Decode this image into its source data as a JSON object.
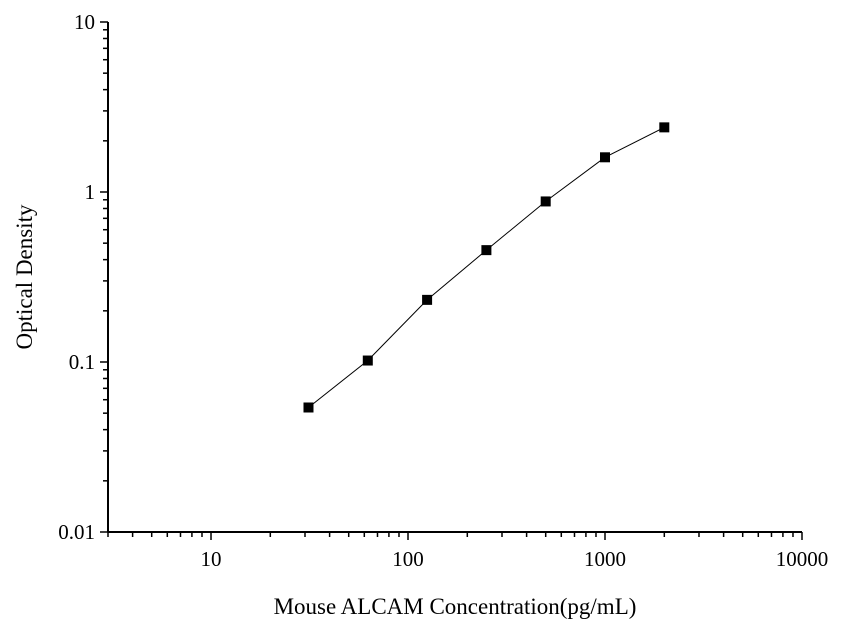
{
  "chart_data": {
    "type": "line",
    "xlabel": "Mouse ALCAM Concentration(pg/mL)",
    "ylabel": "Optical Density",
    "xscale": "log",
    "yscale": "log",
    "xlim": [
      3,
      10000
    ],
    "ylim": [
      0.01,
      10
    ],
    "x_ticks": [
      10,
      100,
      1000,
      10000
    ],
    "x_tick_labels": [
      "10",
      "100",
      "1000",
      "10000"
    ],
    "y_ticks": [
      0.01,
      0.1,
      1,
      10
    ],
    "y_tick_labels": [
      "0.01",
      "0.1",
      "1",
      "10"
    ],
    "grid": false,
    "marker": "square",
    "color": "#000000",
    "series": [
      {
        "x": [
          31.25,
          62.5,
          125,
          250,
          500,
          1000,
          2000
        ],
        "y": [
          0.054,
          0.102,
          0.232,
          0.455,
          0.88,
          1.6,
          2.4
        ]
      }
    ]
  }
}
